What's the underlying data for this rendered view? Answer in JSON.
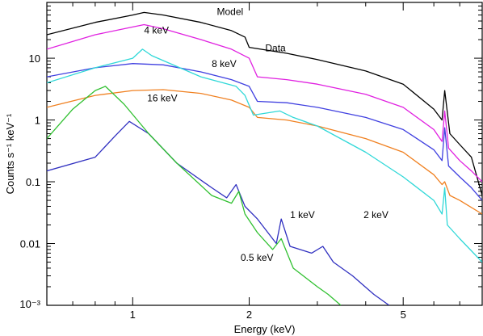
{
  "chart_data": {
    "type": "line",
    "title": "",
    "xlabel": "Energy (keV)",
    "ylabel": "Counts s⁻¹ keV⁻¹",
    "x_scale": "log",
    "y_scale": "log",
    "xlim": [
      0.6,
      8.0
    ],
    "ylim": [
      0.001,
      80
    ],
    "x_major_ticks": [
      1,
      2,
      5
    ],
    "x_tick_labels": [
      "1",
      "2",
      "5"
    ],
    "y_major_ticks": [
      0.001,
      0.01,
      0.1,
      1,
      10
    ],
    "y_tick_labels": [
      "10⁻³",
      "0.01",
      "0.1",
      "1",
      "10"
    ],
    "grid": false,
    "legend": "none",
    "series": [
      {
        "name": "Data",
        "color": "#000000",
        "x": [
          0.6,
          0.8,
          1.0,
          1.07,
          1.2,
          1.5,
          1.8,
          1.95,
          2.0,
          2.5,
          3.0,
          4.0,
          5.0,
          6.0,
          6.3,
          6.4,
          6.6,
          7.0,
          7.5,
          8.0
        ],
        "y": [
          24,
          38,
          50,
          55,
          50,
          38,
          28,
          22,
          15,
          12,
          9.5,
          6.2,
          3.8,
          1.5,
          1.0,
          3.0,
          0.6,
          0.4,
          0.25,
          0.06
        ]
      },
      {
        "name": "4 keV",
        "color": "#e020e0",
        "x": [
          0.6,
          0.8,
          1.0,
          1.07,
          1.2,
          1.5,
          1.8,
          2.0,
          2.1,
          2.5,
          3.0,
          4.0,
          5.0,
          6.0,
          6.3,
          6.4,
          6.55,
          7.0,
          7.5,
          8.0
        ],
        "y": [
          14,
          24,
          32,
          35,
          30,
          20,
          14,
          10,
          5.0,
          4.5,
          3.8,
          2.6,
          1.6,
          0.7,
          0.45,
          1.4,
          0.35,
          0.22,
          0.15,
          0.1
        ]
      },
      {
        "name": "8 keV",
        "color": "#4040e0",
        "x": [
          0.6,
          0.8,
          1.0,
          1.2,
          1.5,
          1.8,
          2.0,
          2.1,
          2.5,
          3.0,
          4.0,
          5.0,
          6.0,
          6.3,
          6.4,
          6.55,
          7.0,
          7.5,
          8.0
        ],
        "y": [
          5.0,
          7.0,
          8.2,
          7.8,
          6.0,
          4.5,
          3.5,
          2.0,
          1.9,
          1.6,
          1.1,
          0.7,
          0.33,
          0.22,
          0.75,
          0.18,
          0.12,
          0.08,
          0.05
        ]
      },
      {
        "name": "16 keV",
        "color": "#f08020",
        "x": [
          0.6,
          0.8,
          1.0,
          1.2,
          1.5,
          1.8,
          2.0,
          2.1,
          2.5,
          3.0,
          4.0,
          5.0,
          6.0,
          6.3,
          6.4,
          6.6,
          7.0,
          8.0
        ],
        "y": [
          1.6,
          2.5,
          3.0,
          3.1,
          2.7,
          2.1,
          1.6,
          1.1,
          1.0,
          0.8,
          0.5,
          0.3,
          0.13,
          0.09,
          0.1,
          0.06,
          0.05,
          0.03
        ]
      },
      {
        "name": "2 keV",
        "color": "#30d8d8",
        "x": [
          0.6,
          0.8,
          1.0,
          1.06,
          1.12,
          1.5,
          1.85,
          1.95,
          2.05,
          2.4,
          2.6,
          3.0,
          4.0,
          5.0,
          6.0,
          6.3,
          6.4,
          6.5,
          7.0,
          8.0
        ],
        "y": [
          4.0,
          7.0,
          10,
          14,
          11,
          5.0,
          3.5,
          2.5,
          1.2,
          1.4,
          1.1,
          0.8,
          0.3,
          0.12,
          0.05,
          0.03,
          0.08,
          0.02,
          0.012,
          0.005
        ]
      },
      {
        "name": "1 keV",
        "color": "#3030c0",
        "x": [
          0.6,
          0.8,
          0.9,
          0.98,
          1.1,
          1.3,
          1.6,
          1.75,
          1.85,
          1.95,
          2.1,
          2.35,
          2.42,
          2.55,
          2.9,
          3.1,
          3.3,
          3.7,
          4.2,
          4.6
        ],
        "y": [
          0.15,
          0.25,
          0.55,
          0.95,
          0.6,
          0.2,
          0.08,
          0.055,
          0.09,
          0.04,
          0.025,
          0.01,
          0.025,
          0.009,
          0.007,
          0.009,
          0.005,
          0.003,
          0.0015,
          0.001
        ]
      },
      {
        "name": "0.5 keV",
        "color": "#30c030",
        "x": [
          0.6,
          0.7,
          0.8,
          0.85,
          0.95,
          1.1,
          1.3,
          1.6,
          1.8,
          1.88,
          1.95,
          2.1,
          2.3,
          2.42,
          2.6,
          3.0,
          3.2,
          3.45
        ],
        "y": [
          0.5,
          1.5,
          3.0,
          3.5,
          1.8,
          0.6,
          0.2,
          0.06,
          0.045,
          0.07,
          0.03,
          0.015,
          0.008,
          0.012,
          0.004,
          0.002,
          0.0015,
          0.001
        ]
      }
    ],
    "annotations": [
      {
        "text": "Model",
        "x": 1.65,
        "y": 50
      },
      {
        "text": "4 keV",
        "x": 1.07,
        "y": 25
      },
      {
        "text": "Data",
        "x": 2.2,
        "y": 13
      },
      {
        "text": "8 keV",
        "x": 1.6,
        "y": 7.2
      },
      {
        "text": "16 keV",
        "x": 1.09,
        "y": 2.0
      },
      {
        "text": "1 keV",
        "x": 2.55,
        "y": 0.026
      },
      {
        "text": "2 keV",
        "x": 3.95,
        "y": 0.026
      },
      {
        "text": "0.5 keV",
        "x": 1.9,
        "y": 0.0052
      }
    ]
  }
}
